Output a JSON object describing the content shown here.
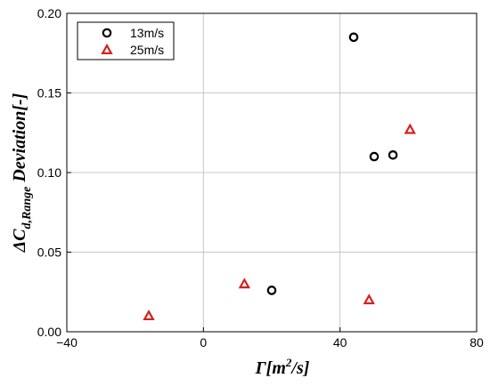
{
  "chart_data": {
    "type": "scatter",
    "xlim": [
      -40,
      80
    ],
    "ylim": [
      0,
      0.2
    ],
    "x_ticks": [
      {
        "value": -40,
        "label": "−40"
      },
      {
        "value": 0,
        "label": "0"
      },
      {
        "value": 40,
        "label": "40"
      },
      {
        "value": 80,
        "label": "80"
      }
    ],
    "y_ticks": [
      {
        "value": 0,
        "label": "0.00"
      },
      {
        "value": 0.05,
        "label": "0.05"
      },
      {
        "value": 0.1,
        "label": "0.10"
      },
      {
        "value": 0.15,
        "label": "0.15"
      },
      {
        "value": 0.2,
        "label": "0.20"
      }
    ],
    "grid": true,
    "legend_position": "top-left",
    "xlabel": {
      "main": "Γ[m",
      "sup": "2",
      "rest": "/s]"
    },
    "ylabel": {
      "main": "ΔC",
      "sub": "d,Range",
      "rest": " Deviation[-]"
    },
    "series": [
      {
        "name": "13m/s",
        "marker": "circle",
        "color": "#000000",
        "points": [
          {
            "x": 20,
            "y": 0.026
          },
          {
            "x": 44,
            "y": 0.185
          },
          {
            "x": 50,
            "y": 0.11
          },
          {
            "x": 55.5,
            "y": 0.111
          }
        ]
      },
      {
        "name": "25m/s",
        "marker": "triangle",
        "color": "#d42020",
        "points": [
          {
            "x": -16,
            "y": 0.01
          },
          {
            "x": 12,
            "y": 0.03
          },
          {
            "x": 48.5,
            "y": 0.02
          },
          {
            "x": 60.5,
            "y": 0.127
          }
        ]
      }
    ]
  }
}
